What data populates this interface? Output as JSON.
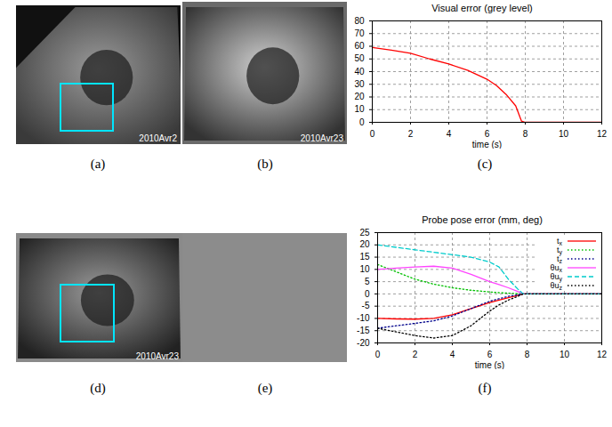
{
  "captions": [
    "(a)",
    "(b)",
    "(c)",
    "(d)",
    "(e)",
    "(f)"
  ],
  "images": [
    {
      "text": "2010Avr2",
      "roi": true
    },
    {
      "text": "2010Avr23",
      "roi": false
    },
    {
      "text": "2010Avr23",
      "roi": true
    },
    {
      "roi": false
    }
  ],
  "chart_data": [
    {
      "type": "line",
      "title": "Visual error (grey level)",
      "x_label": "time (s)",
      "x": [
        0,
        1,
        2,
        3,
        4,
        5,
        6,
        6.5,
        7,
        7.5,
        7.8,
        8,
        10,
        12
      ],
      "series": [
        {
          "name": "visual error",
          "color": "#ff0000",
          "line_style": "solid",
          "values": [
            59,
            57,
            54.5,
            50,
            46,
            41,
            34,
            29,
            22,
            13,
            1,
            0,
            0,
            0
          ]
        }
      ],
      "xlim": [
        0,
        12
      ],
      "xticks": [
        0,
        2,
        4,
        6,
        8,
        10,
        12
      ],
      "ylim": [
        0,
        80
      ],
      "yticks": [
        0,
        10,
        20,
        30,
        40,
        50,
        60,
        70,
        80
      ],
      "grid": true
    },
    {
      "type": "line",
      "title": "Probe pose error (mm, deg)",
      "x_label": "time (s)",
      "x": [
        0,
        1,
        2,
        3,
        4,
        5,
        6,
        6.5,
        7,
        7.5,
        7.8,
        8,
        10,
        12
      ],
      "series": [
        {
          "name": "tx",
          "color": "#ff0000",
          "line_style": "solid",
          "values": [
            -10,
            -10.2,
            -10.3,
            -10,
            -8.5,
            -6,
            -3.5,
            -2.5,
            -1.5,
            -0.6,
            0,
            0,
            0,
            0
          ]
        },
        {
          "name": "ty",
          "color": "#00c000",
          "line_style": "dotted",
          "values": [
            12,
            9,
            6,
            4,
            2.5,
            1.5,
            0.8,
            0.5,
            0.3,
            0.1,
            0,
            0,
            0,
            0
          ]
        },
        {
          "name": "tz",
          "color": "#00008b",
          "line_style": "dotted",
          "values": [
            -14,
            -13,
            -12,
            -11,
            -9,
            -6,
            -3,
            -2,
            -1,
            -0.4,
            0,
            0,
            0,
            0
          ]
        },
        {
          "name": "θux",
          "color": "#ff44ff",
          "line_style": "solid",
          "values": [
            10,
            10.5,
            11,
            11.3,
            10.5,
            8,
            5,
            3.8,
            2.5,
            1,
            0,
            0,
            0,
            0
          ]
        },
        {
          "name": "θuy",
          "color": "#00cccc",
          "line_style": "dashed",
          "values": [
            20,
            19,
            18,
            17,
            16,
            15,
            13,
            11,
            6,
            2,
            0,
            0,
            0,
            0
          ]
        },
        {
          "name": "θuz",
          "color": "#000000",
          "line_style": "dotted",
          "values": [
            -14,
            -15.5,
            -17,
            -18,
            -17,
            -13,
            -7,
            -4.5,
            -2.5,
            -1,
            0,
            0,
            0,
            0
          ]
        }
      ],
      "xlim": [
        0,
        12
      ],
      "xticks": [
        0,
        2,
        4,
        6,
        8,
        10,
        12
      ],
      "ylim": [
        -20,
        25
      ],
      "yticks": [
        -20,
        -15,
        -10,
        -5,
        0,
        5,
        10,
        15,
        20,
        25
      ],
      "grid": true,
      "legend": "upper right"
    }
  ]
}
